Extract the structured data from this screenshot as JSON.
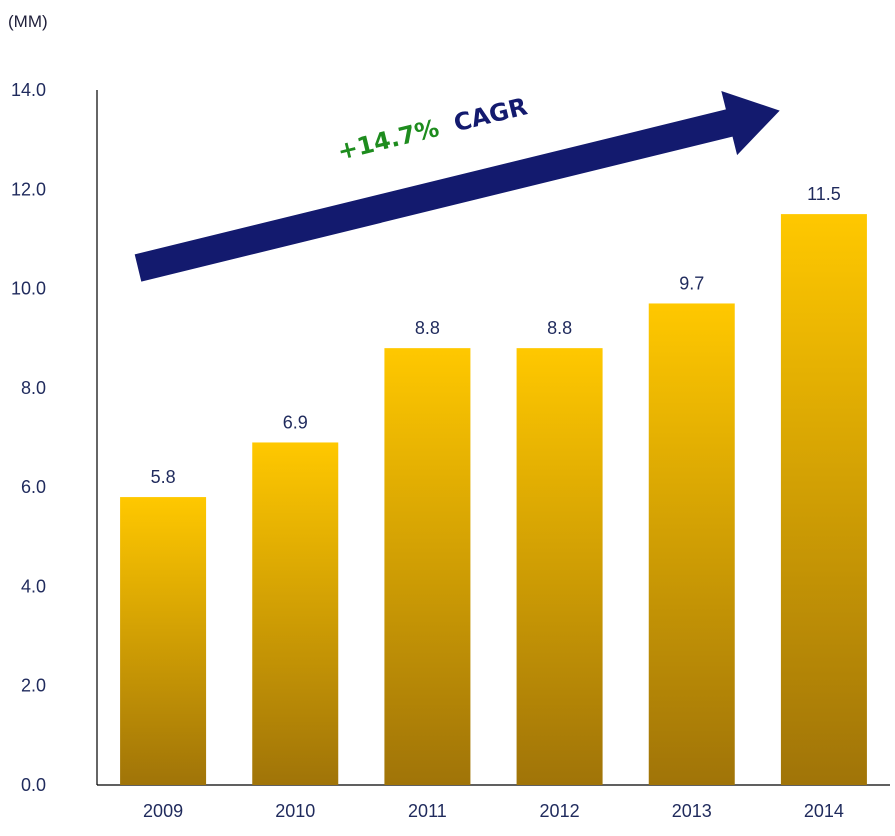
{
  "chart_data": {
    "type": "bar",
    "unit_label": "(MM)",
    "categories": [
      "2009",
      "2010",
      "2011",
      "2012",
      "2013",
      "2014"
    ],
    "values": [
      5.8,
      6.9,
      8.8,
      8.8,
      9.7,
      11.5
    ],
    "data_labels": [
      "5.8",
      "6.9",
      "8.8",
      "8.8",
      "9.7",
      "11.5"
    ],
    "ylim": [
      0,
      14
    ],
    "yticks": [
      "0.0",
      "2.0",
      "4.0",
      "6.0",
      "8.0",
      "10.0",
      "12.0",
      "14.0"
    ],
    "grid": false,
    "annotation": {
      "growth": "+14.7%",
      "label": "CAGR"
    },
    "colors": {
      "bar_top": "#FFC800",
      "bar_bottom": "#A07408",
      "arrow": "#131A6E",
      "growth_text": "#1E8C1E",
      "cagr_text": "#131A6E",
      "text": "#1F2A5C",
      "axis": "#000000"
    }
  }
}
